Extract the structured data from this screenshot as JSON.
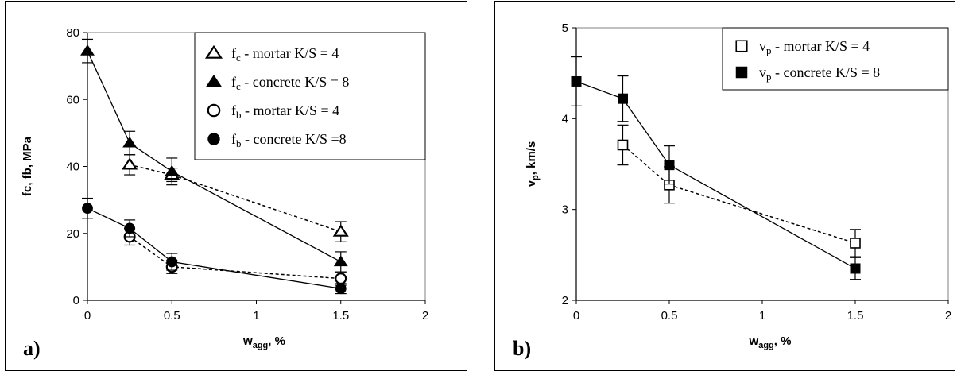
{
  "chart_data": [
    {
      "type": "line",
      "panel_label": "a)",
      "xlabel_main": "w",
      "xlabel_sub": "agg",
      "xlabel_tail": ", %",
      "ylabel": "fc, fb, MPa",
      "xlim": [
        0,
        2
      ],
      "ylim": [
        0,
        80
      ],
      "xticks": [
        0,
        0.5,
        1,
        1.5,
        2
      ],
      "xtick_labels": [
        "0",
        "0.5",
        "1",
        "1.5",
        "2"
      ],
      "yticks": [
        0,
        20,
        40,
        60,
        80
      ],
      "ytick_labels": [
        "0",
        "20",
        "40",
        "60",
        "80"
      ],
      "grid": false,
      "legend_position": "top-right",
      "series": [
        {
          "name": "fc - mortar K/S = 4",
          "legend_main": "f",
          "legend_sub": "c",
          "legend_tail": " - mortar K/S = 4",
          "marker": "triangle-open",
          "line": "dashed",
          "x": [
            0.25,
            0.5,
            1.5
          ],
          "y": [
            40.5,
            37.5,
            20.5
          ],
          "err": [
            3,
            2,
            3
          ]
        },
        {
          "name": "fc - concrete K/S = 8",
          "legend_main": "f",
          "legend_sub": "c",
          "legend_tail": " - concrete K/S = 8",
          "marker": "triangle-filled",
          "line": "solid",
          "x": [
            0,
            0.25,
            0.5,
            1.5
          ],
          "y": [
            74.5,
            47,
            38.5,
            11.5
          ],
          "err": [
            3.5,
            3.5,
            4,
            3
          ]
        },
        {
          "name": "fb - mortar K/S = 4",
          "legend_main": "f",
          "legend_sub": "b",
          "legend_tail": " - mortar K/S = 4",
          "marker": "circle-open",
          "line": "dashed",
          "x": [
            0.25,
            0.5,
            1.5
          ],
          "y": [
            19,
            10,
            6.5
          ],
          "err": [
            2.5,
            2,
            2
          ]
        },
        {
          "name": "fb - concrete K/S =8",
          "legend_main": "f",
          "legend_sub": "b",
          "legend_tail": " - concrete K/S =8",
          "marker": "circle-filled",
          "line": "solid",
          "x": [
            0,
            0.25,
            0.5,
            1.5
          ],
          "y": [
            27.5,
            21.5,
            11.5,
            3.5
          ],
          "err": [
            3,
            2.5,
            2.5,
            1.5
          ]
        }
      ]
    },
    {
      "type": "line",
      "panel_label": "b)",
      "xlabel_main": "w",
      "xlabel_sub": "agg",
      "xlabel_tail": ", %",
      "ylabel_main": "v",
      "ylabel_sub": "p",
      "ylabel_tail": ", km/s",
      "xlim": [
        0,
        2
      ],
      "ylim": [
        2,
        5
      ],
      "xticks": [
        0,
        0.5,
        1,
        1.5,
        2
      ],
      "xtick_labels": [
        "0",
        "0.5",
        "1",
        "1.5",
        "2"
      ],
      "yticks": [
        2,
        3,
        4,
        5
      ],
      "ytick_labels": [
        "2",
        "3",
        "4",
        "5"
      ],
      "grid": false,
      "legend_position": "top-right",
      "series": [
        {
          "name": "vp - mortar K/S = 4",
          "legend_main": "v",
          "legend_sub": "p",
          "legend_tail": " - mortar K/S = 4",
          "marker": "square-open",
          "line": "dashed",
          "x": [
            0.25,
            0.5,
            1.5
          ],
          "y": [
            3.71,
            3.27,
            2.63
          ],
          "err": [
            0.22,
            0.2,
            0.15
          ]
        },
        {
          "name": "vp - concrete K/S = 8",
          "legend_main": "v",
          "legend_sub": "p",
          "legend_tail": " - concrete K/S = 8",
          "marker": "square-filled",
          "line": "solid",
          "x": [
            0,
            0.25,
            0.5,
            1.5
          ],
          "y": [
            4.41,
            4.22,
            3.49,
            2.35
          ],
          "err": [
            0.27,
            0.25,
            0.21,
            0.12
          ]
        }
      ]
    }
  ]
}
